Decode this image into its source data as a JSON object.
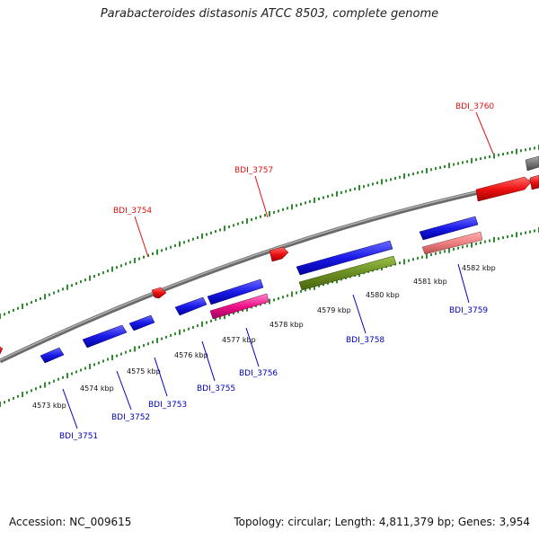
{
  "title": "Parabacteroides distasonis ATCC 8503, complete genome",
  "footer": {
    "accession": "Accession: NC_009615",
    "summary": "Topology: circular; Length: 4,811,379 bp; Genes: 3,954"
  },
  "colors": {
    "backbone": "#888888",
    "tick_green": "#2e8b2e",
    "forward_label": "#dd1111",
    "reverse_label": "#0000bb",
    "gene_red": "#ee1111",
    "gene_blue": "#1a1ae8",
    "gene_magenta": "#ee1188",
    "gene_olive": "#6b8e23",
    "gene_pink": "#ee8080",
    "gene_gray": "#777777"
  },
  "axis": {
    "unit": "kbp",
    "tick_labels": [
      "4573 kbp",
      "4574 kbp",
      "4575 kbp",
      "4576 kbp",
      "4577 kbp",
      "4578 kbp",
      "4579 kbp",
      "4580 kbp",
      "4581 kbp",
      "4582 kbp"
    ]
  },
  "forward_labels": [
    "BDI_3754",
    "BDI_3757",
    "BDI_3760"
  ],
  "reverse_labels": [
    "BDI_3751",
    "BDI_3752",
    "BDI_3753",
    "BDI_3755",
    "BDI_3756",
    "BDI_3758",
    "BDI_3759"
  ]
}
